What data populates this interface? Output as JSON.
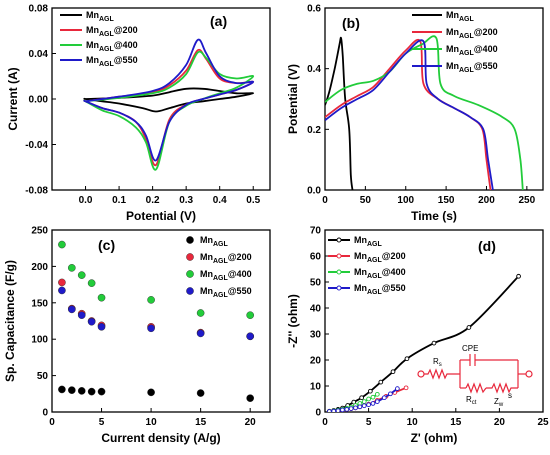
{
  "colors": {
    "Mn_AGL": "#000000",
    "Mn_AGL@200": "#e8283c",
    "Mn_AGL@400": "#22cc3a",
    "Mn_AGL@550": "#1f1ac9",
    "circuit": "#e8283c"
  },
  "chart_data": [
    {
      "panel": "(a)",
      "type": "line",
      "xlabel": "Potential (V)",
      "ylabel": "Current (A)",
      "xlim": [
        -0.1,
        0.55
      ],
      "ylim": [
        -0.08,
        0.08
      ],
      "xticks": [
        "0.0",
        "0.1",
        "0.2",
        "0.3",
        "0.4",
        "0.5"
      ],
      "yticks": [
        "-0.08",
        "-0.04",
        "0.00",
        "0.04",
        "0.08"
      ],
      "legend_position": "top-left",
      "series": [
        {
          "name": "Mn_AGL",
          "color_key": "Mn_AGL",
          "closed": true,
          "x": [
            0.0,
            0.1,
            0.2,
            0.25,
            0.3,
            0.35,
            0.4,
            0.45,
            0.5,
            0.45,
            0.4,
            0.35,
            0.3,
            0.25,
            0.21,
            0.17,
            0.1,
            0.05,
            0.0
          ],
          "y": [
            0.0,
            0.001,
            0.003,
            0.006,
            0.009,
            0.009,
            0.007,
            0.005,
            0.005,
            0.002,
            0.0,
            -0.002,
            -0.004,
            -0.008,
            -0.011,
            -0.008,
            -0.004,
            -0.002,
            0.0
          ]
        },
        {
          "name": "Mn_AGL@200",
          "color_key": "Mn_AGL@200",
          "closed": true,
          "x": [
            0.0,
            0.1,
            0.2,
            0.25,
            0.3,
            0.335,
            0.36,
            0.4,
            0.45,
            0.5,
            0.45,
            0.4,
            0.35,
            0.3,
            0.25,
            0.21,
            0.18,
            0.15,
            0.1,
            0.05,
            0.0
          ],
          "y": [
            -0.002,
            0.002,
            0.006,
            0.012,
            0.025,
            0.043,
            0.035,
            0.018,
            0.014,
            0.015,
            0.008,
            0.004,
            0.0,
            -0.005,
            -0.018,
            -0.058,
            -0.035,
            -0.02,
            -0.012,
            -0.008,
            -0.002
          ]
        },
        {
          "name": "Mn_AGL@400",
          "color_key": "Mn_AGL@400",
          "closed": true,
          "x": [
            0.0,
            0.1,
            0.2,
            0.25,
            0.3,
            0.335,
            0.36,
            0.4,
            0.45,
            0.5,
            0.45,
            0.4,
            0.35,
            0.3,
            0.25,
            0.21,
            0.18,
            0.15,
            0.1,
            0.05,
            0.0
          ],
          "y": [
            -0.002,
            0.001,
            0.005,
            0.01,
            0.022,
            0.041,
            0.036,
            0.022,
            0.018,
            0.02,
            0.01,
            0.005,
            0.0,
            -0.006,
            -0.02,
            -0.062,
            -0.038,
            -0.025,
            -0.015,
            -0.01,
            -0.002
          ]
        },
        {
          "name": "Mn_AGL@550",
          "color_key": "Mn_AGL@550",
          "closed": true,
          "x": [
            0.0,
            0.1,
            0.2,
            0.25,
            0.3,
            0.335,
            0.36,
            0.4,
            0.45,
            0.5,
            0.45,
            0.4,
            0.35,
            0.3,
            0.25,
            0.21,
            0.18,
            0.15,
            0.1,
            0.05,
            0.0
          ],
          "y": [
            -0.002,
            0.002,
            0.007,
            0.014,
            0.03,
            0.052,
            0.04,
            0.02,
            0.014,
            0.015,
            0.008,
            0.004,
            0.0,
            -0.005,
            -0.02,
            -0.054,
            -0.032,
            -0.02,
            -0.012,
            -0.008,
            -0.002
          ]
        }
      ]
    },
    {
      "panel": "(b)",
      "type": "line",
      "xlabel": "Time (s)",
      "ylabel": "Potential (V)",
      "xlim": [
        0,
        270
      ],
      "ylim": [
        0,
        0.6
      ],
      "xticks": [
        "0",
        "50",
        "100",
        "150",
        "200",
        "250"
      ],
      "yticks": [
        "0.0",
        "0.2",
        "0.4",
        "0.6"
      ],
      "legend_position": "top-right",
      "series": [
        {
          "name": "Mn_AGL",
          "color_key": "Mn_AGL",
          "x": [
            0,
            5,
            12,
            18,
            20,
            22,
            25,
            30,
            32,
            34
          ],
          "y": [
            0.28,
            0.32,
            0.4,
            0.48,
            0.5,
            0.44,
            0.3,
            0.2,
            0.05,
            0.0
          ]
        },
        {
          "name": "Mn_AGL@200",
          "color_key": "Mn_AGL@200",
          "x": [
            0,
            20,
            40,
            60,
            80,
            100,
            118,
            122,
            140,
            160,
            180,
            195,
            200,
            205
          ],
          "y": [
            0.24,
            0.28,
            0.31,
            0.34,
            0.4,
            0.46,
            0.49,
            0.35,
            0.3,
            0.27,
            0.24,
            0.2,
            0.1,
            0.0
          ]
        },
        {
          "name": "Mn_AGL@400",
          "color_key": "Mn_AGL@400",
          "x": [
            0,
            20,
            40,
            60,
            80,
            100,
            120,
            138,
            143,
            160,
            190,
            220,
            235,
            242,
            245
          ],
          "y": [
            0.29,
            0.33,
            0.35,
            0.36,
            0.39,
            0.45,
            0.48,
            0.5,
            0.35,
            0.31,
            0.28,
            0.24,
            0.2,
            0.1,
            0.0
          ]
        },
        {
          "name": "Mn_AGL@550",
          "color_key": "Mn_AGL@550",
          "x": [
            0,
            20,
            40,
            60,
            80,
            100,
            122,
            126,
            140,
            160,
            180,
            196,
            202,
            208
          ],
          "y": [
            0.23,
            0.27,
            0.3,
            0.33,
            0.39,
            0.45,
            0.49,
            0.35,
            0.3,
            0.27,
            0.24,
            0.2,
            0.1,
            0.0
          ]
        }
      ]
    },
    {
      "panel": "(c)",
      "type": "scatter",
      "xlabel": "Current density (A/g)",
      "ylabel": "Sp. Capacitance (F/g)",
      "xlim": [
        0,
        22
      ],
      "ylim": [
        0,
        250
      ],
      "xticks": [
        "0",
        "5",
        "10",
        "15",
        "20"
      ],
      "yticks": [
        "0",
        "50",
        "100",
        "150",
        "200",
        "250"
      ],
      "legend_position": "top-right",
      "x": [
        1,
        2,
        3,
        4,
        5,
        10,
        15,
        20
      ],
      "series": [
        {
          "name": "Mn_AGL",
          "color_key": "Mn_AGL",
          "values": [
            31,
            30,
            29,
            28,
            28,
            27,
            26,
            19
          ]
        },
        {
          "name": "Mn_AGL@200",
          "color_key": "Mn_AGL@200",
          "values": [
            178,
            142,
            135,
            125,
            119,
            117,
            109,
            104
          ]
        },
        {
          "name": "Mn_AGL@400",
          "color_key": "Mn_AGL@400",
          "values": [
            230,
            198,
            188,
            177,
            157,
            154,
            136,
            133
          ]
        },
        {
          "name": "Mn_AGL@550",
          "color_key": "Mn_AGL@550",
          "values": [
            167,
            141,
            133,
            124,
            117,
            115,
            108,
            104
          ]
        }
      ]
    },
    {
      "panel": "(d)",
      "type": "line",
      "xlabel": "Z' (ohm)",
      "ylabel": "-Z'' (ohm)",
      "xlim": [
        0,
        25
      ],
      "ylim": [
        0,
        70
      ],
      "xticks": [
        "0",
        "5",
        "10",
        "15",
        "20",
        "25"
      ],
      "yticks": [
        "0",
        "10",
        "20",
        "30",
        "40",
        "50",
        "60",
        "70"
      ],
      "legend_position": "top-left",
      "series": [
        {
          "name": "Mn_AGL",
          "color_key": "Mn_AGL",
          "x": [
            0.5,
            1,
            1.5,
            2,
            2.6,
            3.3,
            4.2,
            5.2,
            6.4,
            7.8,
            9.4,
            12.5,
            16.5,
            22.2
          ],
          "y": [
            0.3,
            0.6,
            1.0,
            1.5,
            2.5,
            3.8,
            5.5,
            8.0,
            11.5,
            15.5,
            20.5,
            26.5,
            32.5,
            52.2
          ]
        },
        {
          "name": "Mn_AGL@200",
          "color_key": "Mn_AGL@200",
          "x": [
            0.5,
            1,
            1.5,
            2,
            2.5,
            3,
            3.5,
            4,
            4.5,
            5,
            6,
            7,
            8,
            9.3
          ],
          "y": [
            0.2,
            0.3,
            0.5,
            0.8,
            1.0,
            1.3,
            1.6,
            2.0,
            2.5,
            3.0,
            4.5,
            6.0,
            7.5,
            9.3
          ]
        },
        {
          "name": "Mn_AGL@400",
          "color_key": "Mn_AGL@400",
          "x": [
            0.5,
            1,
            1.5,
            2,
            2.5,
            3,
            3.5,
            4,
            4.5,
            5,
            5.5,
            6
          ],
          "y": [
            0.2,
            0.4,
            0.7,
            1.0,
            1.4,
            1.9,
            2.5,
            3.3,
            4.0,
            5.0,
            5.7,
            6.8
          ]
        },
        {
          "name": "Mn_AGL@550",
          "color_key": "Mn_AGL@550",
          "x": [
            0.5,
            1,
            1.5,
            2,
            2.5,
            3,
            3.5,
            4,
            4.5,
            5,
            5.5,
            6,
            6.8,
            7.5,
            8.3
          ],
          "y": [
            0.2,
            0.3,
            0.5,
            0.8,
            1.0,
            1.3,
            1.6,
            2.0,
            2.4,
            2.8,
            3.3,
            4.0,
            5.5,
            7.0,
            9.0
          ]
        }
      ],
      "inset_circuit": {
        "labels": [
          "Rs",
          "CPE",
          "Rct",
          "Zw",
          "s"
        ]
      }
    }
  ],
  "legend": {
    "base": "Mn",
    "sub": "AGL",
    "entries": [
      {
        "suffix": ""
      },
      {
        "suffix": "@200"
      },
      {
        "suffix": "@400"
      },
      {
        "suffix": "@550"
      }
    ]
  }
}
